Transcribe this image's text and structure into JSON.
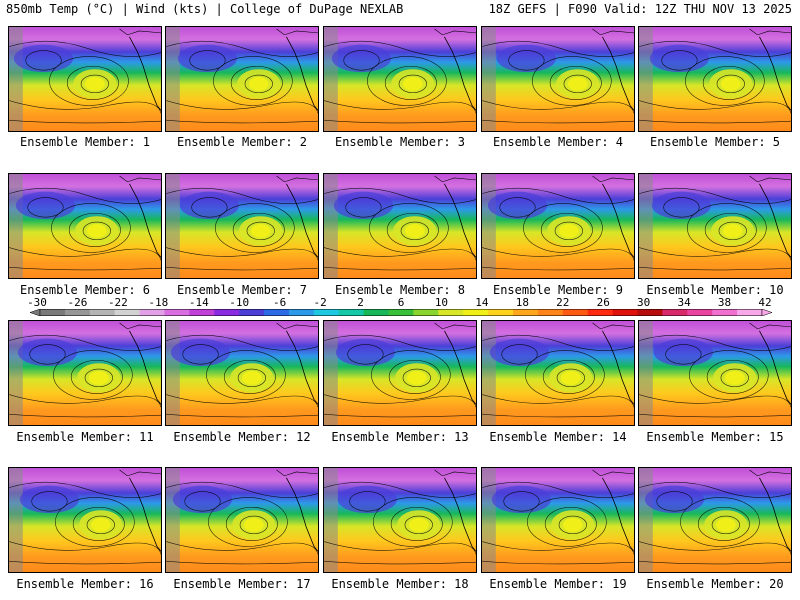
{
  "header": {
    "left_title": "850mb Temp (°C) | Wind (kts) | College of DuPage NEXLAB",
    "right_title": "18Z GEFS | F090 Valid: 12Z THU NOV 13 2025"
  },
  "colorbar": {
    "ticks": [
      "-30",
      "-26",
      "-22",
      "-18",
      "-14",
      "-10",
      "-6",
      "-2",
      "2",
      "6",
      "10",
      "14",
      "18",
      "22",
      "26",
      "30",
      "34",
      "38",
      "42"
    ],
    "colors": [
      "#7a7a7a",
      "#969696",
      "#b4b4b4",
      "#d2d2d2",
      "#e2a0e6",
      "#d86ee0",
      "#c040d8",
      "#8a2be2",
      "#4b3fd8",
      "#2d6ae6",
      "#2c9ae8",
      "#1ec8e0",
      "#14c8a8",
      "#18b85a",
      "#39c03a",
      "#8ad430",
      "#d8e628",
      "#f0f018",
      "#ffd21e",
      "#ffa81e",
      "#ff841a",
      "#ff5a14",
      "#ff2a10",
      "#e0120c",
      "#b80c0c",
      "#d82a6a",
      "#e844a0",
      "#f070d0",
      "#f8a8e8"
    ]
  },
  "members": [
    {
      "label": "Ensemble Member: 1"
    },
    {
      "label": "Ensemble Member: 2"
    },
    {
      "label": "Ensemble Member: 3"
    },
    {
      "label": "Ensemble Member: 4"
    },
    {
      "label": "Ensemble Member: 5"
    },
    {
      "label": "Ensemble Member: 6"
    },
    {
      "label": "Ensemble Member: 7"
    },
    {
      "label": "Ensemble Member: 8"
    },
    {
      "label": "Ensemble Member: 9"
    },
    {
      "label": "Ensemble Member: 10"
    },
    {
      "label": "Ensemble Member: 11"
    },
    {
      "label": "Ensemble Member: 12"
    },
    {
      "label": "Ensemble Member: 13"
    },
    {
      "label": "Ensemble Member: 14"
    },
    {
      "label": "Ensemble Member: 15"
    },
    {
      "label": "Ensemble Member: 16"
    },
    {
      "label": "Ensemble Member: 17"
    },
    {
      "label": "Ensemble Member: 18"
    },
    {
      "label": "Ensemble Member: 19"
    },
    {
      "label": "Ensemble Member: 20"
    }
  ]
}
